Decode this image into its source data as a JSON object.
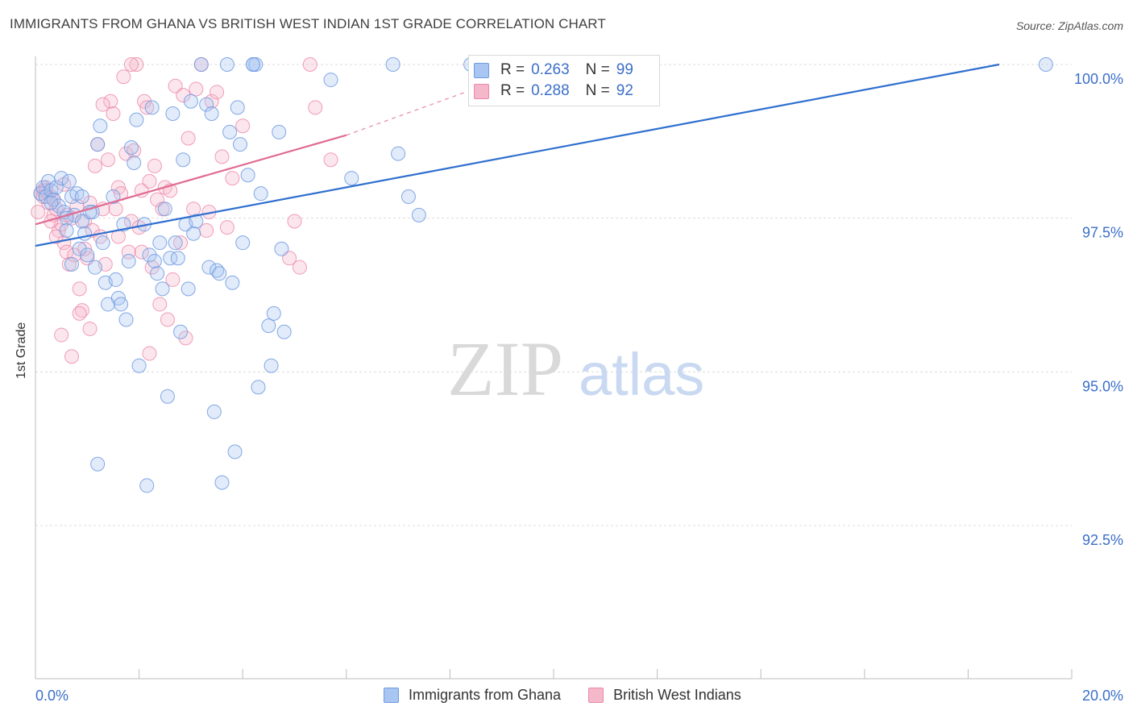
{
  "header": {
    "title": "IMMIGRANTS FROM GHANA VS BRITISH WEST INDIAN 1ST GRADE CORRELATION CHART",
    "source": "Source: ZipAtlas.com"
  },
  "watermark": {
    "zip": "ZIP",
    "atlas": "atlas"
  },
  "legend": {
    "rows": [
      {
        "r_label": "R =",
        "r_value": "0.263",
        "n_label": "N =",
        "n_value": "99",
        "color": "#a9c6f2"
      },
      {
        "r_label": "R =",
        "r_value": "0.288",
        "n_label": "N =",
        "n_value": "92",
        "color": "#f5b8cb"
      }
    ]
  },
  "bottom_legend": [
    "Immigrants from Ghana",
    "British West Indians"
  ],
  "chart_data": {
    "type": "scatter",
    "title": "IMMIGRANTS FROM GHANA VS BRITISH WEST INDIAN 1ST GRADE CORRELATION CHART",
    "xlabel": "",
    "ylabel": "1st Grade",
    "xlim": [
      0,
      20
    ],
    "ylim": [
      90.2,
      100.2
    ],
    "x_tick_labels": [
      "0.0%",
      "20.0%"
    ],
    "y_ticks": [
      92.5,
      95.0,
      97.5,
      100.0
    ],
    "y_tick_labels": [
      "92.5%",
      "95.0%",
      "97.5%",
      "100.0%"
    ],
    "grid": true,
    "colors": {
      "blue": "#6f9ae0",
      "blue_fill": "#a9c6f2",
      "pink": "#ec87a8",
      "pink_fill": "#f5b8cb",
      "blue_line": "#2f6fcf",
      "pink_line": "#e06b92",
      "tick_text": "#3b6fc9"
    },
    "series": [
      {
        "name": "Immigrants from Ghana",
        "trend": {
          "x0": 0.0,
          "y0": 97.05,
          "x1": 18.6,
          "y1": 100.0
        },
        "points": [
          [
            0.1,
            97.9
          ],
          [
            0.15,
            98.0
          ],
          [
            0.2,
            97.85
          ],
          [
            0.25,
            98.1
          ],
          [
            0.3,
            97.95
          ],
          [
            0.35,
            97.8
          ],
          [
            0.4,
            98.0
          ],
          [
            0.45,
            97.7
          ],
          [
            0.5,
            98.15
          ],
          [
            0.55,
            97.6
          ],
          [
            0.6,
            97.3
          ],
          [
            0.65,
            98.1
          ],
          [
            0.7,
            97.85
          ],
          [
            0.75,
            97.55
          ],
          [
            0.8,
            97.9
          ],
          [
            0.85,
            97.0
          ],
          [
            0.9,
            97.45
          ],
          [
            0.95,
            97.25
          ],
          [
            1.0,
            96.9
          ],
          [
            1.1,
            97.6
          ],
          [
            1.15,
            96.7
          ],
          [
            1.2,
            98.7
          ],
          [
            1.25,
            99.0
          ],
          [
            1.3,
            97.1
          ],
          [
            1.35,
            96.45
          ],
          [
            1.4,
            96.1
          ],
          [
            1.5,
            97.85
          ],
          [
            1.55,
            96.5
          ],
          [
            1.6,
            96.2
          ],
          [
            1.65,
            96.1
          ],
          [
            1.7,
            97.4
          ],
          [
            1.75,
            95.85
          ],
          [
            1.8,
            96.8
          ],
          [
            1.85,
            98.65
          ],
          [
            1.9,
            98.4
          ],
          [
            1.95,
            99.1
          ],
          [
            2.0,
            95.1
          ],
          [
            2.1,
            97.4
          ],
          [
            2.2,
            96.9
          ],
          [
            2.25,
            99.3
          ],
          [
            2.3,
            96.8
          ],
          [
            2.35,
            96.6
          ],
          [
            2.4,
            97.1
          ],
          [
            2.45,
            96.35
          ],
          [
            2.5,
            97.65
          ],
          [
            2.55,
            94.6
          ],
          [
            2.6,
            96.85
          ],
          [
            2.65,
            99.2
          ],
          [
            2.7,
            97.1
          ],
          [
            2.75,
            96.85
          ],
          [
            2.8,
            95.65
          ],
          [
            2.85,
            98.45
          ],
          [
            2.9,
            97.4
          ],
          [
            2.95,
            96.35
          ],
          [
            3.0,
            99.4
          ],
          [
            3.05,
            97.25
          ],
          [
            3.1,
            97.45
          ],
          [
            3.2,
            100.0
          ],
          [
            3.3,
            99.35
          ],
          [
            3.35,
            96.7
          ],
          [
            3.4,
            99.2
          ],
          [
            3.45,
            94.35
          ],
          [
            3.5,
            96.65
          ],
          [
            3.55,
            96.6
          ],
          [
            3.6,
            93.2
          ],
          [
            3.7,
            100.0
          ],
          [
            3.75,
            98.9
          ],
          [
            3.8,
            96.45
          ],
          [
            3.85,
            93.7
          ],
          [
            3.9,
            99.3
          ],
          [
            3.95,
            98.7
          ],
          [
            4.0,
            97.1
          ],
          [
            4.1,
            98.2
          ],
          [
            4.2,
            100.0
          ],
          [
            4.25,
            100.0
          ],
          [
            4.3,
            94.75
          ],
          [
            4.35,
            97.9
          ],
          [
            4.5,
            95.75
          ],
          [
            4.55,
            95.1
          ],
          [
            4.6,
            95.95
          ],
          [
            4.7,
            98.9
          ],
          [
            4.75,
            97.0
          ],
          [
            4.8,
            95.65
          ],
          [
            5.7,
            99.75
          ],
          [
            6.1,
            98.15
          ],
          [
            6.9,
            100.0
          ],
          [
            7.0,
            98.55
          ],
          [
            7.2,
            97.85
          ],
          [
            7.4,
            97.55
          ],
          [
            1.2,
            93.5
          ],
          [
            2.15,
            93.15
          ],
          [
            1.05,
            97.6
          ],
          [
            0.7,
            96.75
          ],
          [
            0.3,
            97.75
          ],
          [
            0.6,
            97.5
          ],
          [
            0.9,
            97.85
          ],
          [
            19.5,
            100.0
          ],
          [
            8.4,
            100.0
          ],
          [
            4.2,
            100.0
          ]
        ]
      },
      {
        "name": "British West Indians",
        "trend": {
          "x0": 0.0,
          "y0": 97.4,
          "x1": 6.0,
          "y1": 98.85,
          "dash_to_x": 8.3,
          "dash_to_y": 99.55
        },
        "points": [
          [
            0.05,
            97.6
          ],
          [
            0.1,
            97.9
          ],
          [
            0.15,
            97.95
          ],
          [
            0.2,
            98.0
          ],
          [
            0.25,
            97.75
          ],
          [
            0.3,
            97.85
          ],
          [
            0.35,
            97.55
          ],
          [
            0.4,
            97.65
          ],
          [
            0.45,
            97.3
          ],
          [
            0.5,
            97.4
          ],
          [
            0.55,
            97.1
          ],
          [
            0.6,
            96.95
          ],
          [
            0.65,
            96.75
          ],
          [
            0.7,
            97.5
          ],
          [
            0.75,
            96.9
          ],
          [
            0.8,
            97.7
          ],
          [
            0.85,
            96.35
          ],
          [
            0.9,
            96.0
          ],
          [
            0.95,
            97.45
          ],
          [
            1.0,
            96.85
          ],
          [
            1.05,
            97.75
          ],
          [
            1.1,
            97.3
          ],
          [
            1.15,
            98.35
          ],
          [
            1.2,
            98.7
          ],
          [
            1.25,
            97.2
          ],
          [
            1.3,
            97.65
          ],
          [
            1.35,
            96.75
          ],
          [
            1.4,
            98.45
          ],
          [
            1.45,
            99.4
          ],
          [
            1.5,
            99.2
          ],
          [
            1.55,
            97.65
          ],
          [
            1.6,
            98.0
          ],
          [
            1.65,
            97.9
          ],
          [
            1.7,
            99.8
          ],
          [
            1.75,
            98.55
          ],
          [
            1.8,
            96.95
          ],
          [
            1.85,
            97.45
          ],
          [
            1.9,
            98.6
          ],
          [
            1.95,
            100.0
          ],
          [
            2.0,
            97.35
          ],
          [
            2.05,
            97.95
          ],
          [
            2.1,
            99.4
          ],
          [
            2.15,
            99.3
          ],
          [
            2.2,
            98.1
          ],
          [
            2.25,
            96.7
          ],
          [
            2.3,
            98.35
          ],
          [
            2.35,
            97.8
          ],
          [
            2.4,
            96.1
          ],
          [
            2.45,
            97.65
          ],
          [
            2.5,
            98.0
          ],
          [
            2.55,
            95.85
          ],
          [
            2.6,
            97.95
          ],
          [
            2.65,
            96.5
          ],
          [
            2.7,
            99.65
          ],
          [
            2.8,
            97.1
          ],
          [
            2.85,
            99.5
          ],
          [
            2.9,
            95.55
          ],
          [
            2.95,
            98.8
          ],
          [
            3.05,
            97.65
          ],
          [
            3.1,
            99.6
          ],
          [
            3.2,
            100.0
          ],
          [
            3.3,
            97.3
          ],
          [
            3.4,
            99.4
          ],
          [
            3.5,
            99.55
          ],
          [
            3.6,
            98.5
          ],
          [
            3.7,
            97.35
          ],
          [
            3.8,
            98.15
          ],
          [
            4.9,
            96.85
          ],
          [
            5.1,
            96.7
          ],
          [
            5.3,
            100.0
          ],
          [
            5.4,
            99.3
          ],
          [
            5.7,
            98.45
          ],
          [
            0.3,
            97.45
          ],
          [
            0.5,
            95.6
          ],
          [
            0.7,
            95.25
          ],
          [
            0.85,
            95.95
          ],
          [
            1.05,
            95.7
          ],
          [
            0.2,
            97.95
          ],
          [
            0.35,
            97.8
          ],
          [
            0.55,
            98.05
          ],
          [
            0.6,
            97.55
          ],
          [
            0.95,
            97.0
          ],
          [
            1.3,
            99.35
          ],
          [
            1.85,
            100.0
          ],
          [
            2.2,
            95.3
          ],
          [
            4.0,
            99.0
          ],
          [
            5.0,
            97.45
          ],
          [
            3.35,
            97.6
          ],
          [
            2.05,
            96.95
          ],
          [
            1.6,
            97.2
          ],
          [
            0.15,
            97.85
          ],
          [
            0.4,
            97.2
          ]
        ]
      }
    ]
  }
}
